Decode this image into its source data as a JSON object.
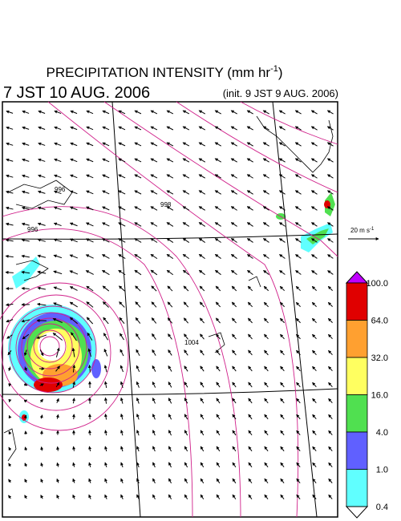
{
  "header": {
    "title": "PRECIPITATION INTENSITY (mm hr",
    "title_unit_exponent": "-1",
    "title_close": ")",
    "valid_time": "7 JST 10 AUG. 2006",
    "init_time": "(init. 9 JST 9 AUG. 2006)"
  },
  "vector_reference": {
    "label": "20 m s",
    "exponent": "-1"
  },
  "contour_labels": [
    "996",
    "996",
    "998",
    "1004"
  ],
  "colorbar": {
    "labels": [
      "100.0",
      "64.0",
      "32.0",
      "16.0",
      "4.0",
      "1.0",
      "0.4"
    ],
    "colors": [
      "#c000ff",
      "#e00000",
      "#ffa030",
      "#ffff60",
      "#50e050",
      "#6060ff",
      "#60ffff",
      "#ffffff"
    ]
  }
}
